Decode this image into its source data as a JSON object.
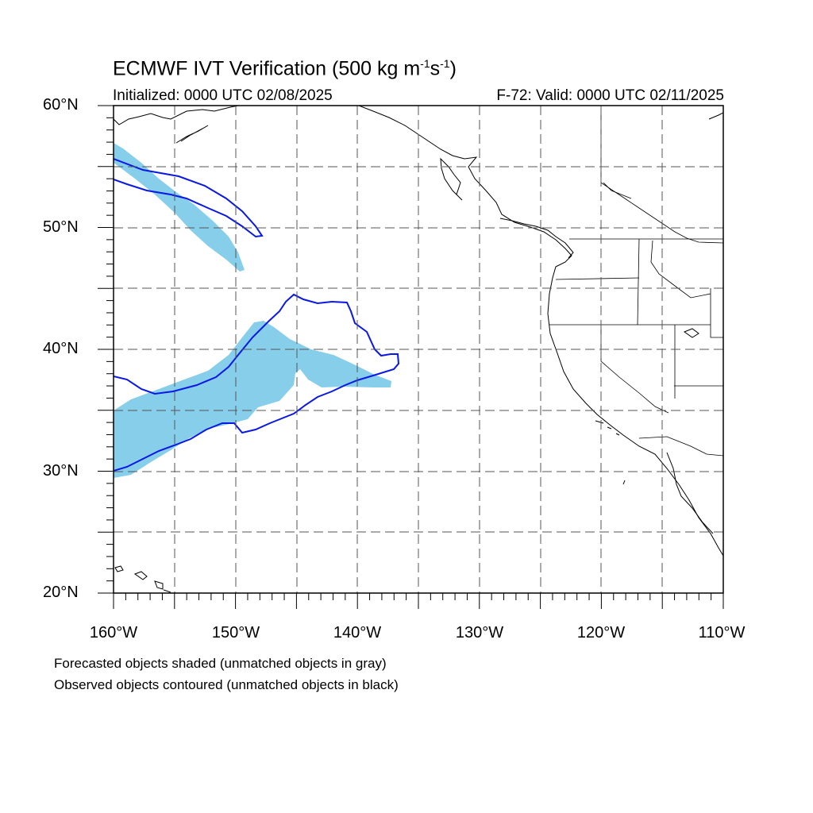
{
  "title": {
    "main": "ECMWF IVT Verification (500 kg m",
    "sup1": "-1",
    "mid": "s",
    "sup2": "-1",
    "end": ")"
  },
  "initialized": "Initialized: 0000 UTC 02/08/2025",
  "valid": "F-72: Valid: 0000 UTC 02/11/2025",
  "y_labels": [
    "60°N",
    "50°N",
    "40°N",
    "30°N",
    "20°N"
  ],
  "x_labels": [
    "160°W",
    "150°W",
    "140°W",
    "130°W",
    "120°W",
    "110°W"
  ],
  "notes": [
    "Forecasted objects shaded (unmatched objects in gray)",
    "Observed objects contoured (unmatched objects in black)"
  ],
  "colors": {
    "forecast_fill": "#87ceeb",
    "observed_contour": "#0a18e6",
    "coast": "#000000",
    "grid": "#555555"
  },
  "map_extent": {
    "lon_min": -160,
    "lon_max": -110,
    "lat_min": 20,
    "lat_max": 60
  }
}
